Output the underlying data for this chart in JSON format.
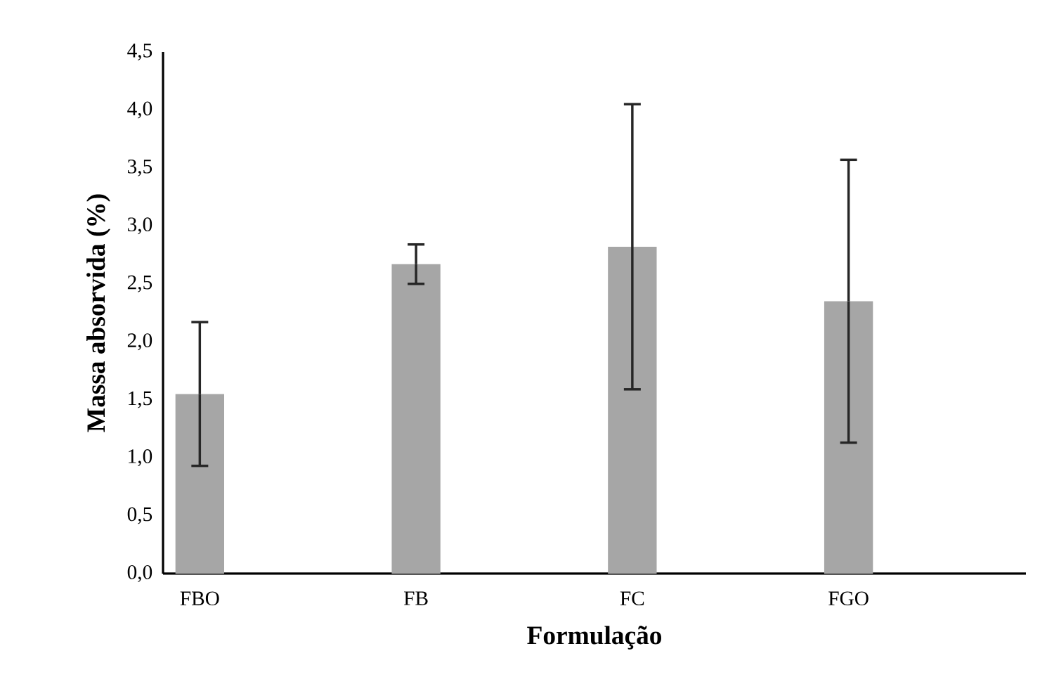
{
  "chart_data": {
    "type": "bar",
    "xlabel": "Formulação",
    "ylabel": "Massa absorvida (%)",
    "categories": [
      "FBO",
      "FB",
      "FC",
      "FGO"
    ],
    "values": [
      1.55,
      2.67,
      2.82,
      2.35
    ],
    "errors": [
      0.62,
      0.17,
      1.23,
      1.22
    ],
    "color": "#a6a6a6",
    "ylim": [
      0,
      4.5
    ],
    "yticks": [
      {
        "value": 0,
        "label": "0,0"
      },
      {
        "value": 0.5,
        "label": "0,5"
      },
      {
        "value": 1,
        "label": "1,0"
      },
      {
        "value": 1.5,
        "label": "1,5"
      },
      {
        "value": 2,
        "label": "2,0"
      },
      {
        "value": 2.5,
        "label": "2,5"
      },
      {
        "value": 3,
        "label": "3,0"
      },
      {
        "value": 3.5,
        "label": "3,5"
      },
      {
        "value": 4,
        "label": "4,0"
      },
      {
        "value": 4.5,
        "label": "4,5"
      }
    ],
    "grid": false
  }
}
